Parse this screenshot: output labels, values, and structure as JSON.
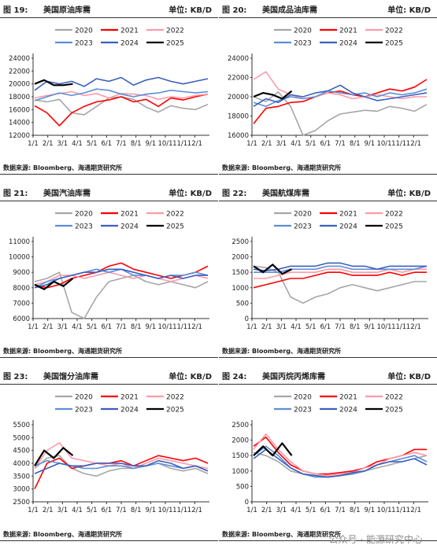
{
  "watermark": "公众号 · 能源研究中心",
  "colors": {
    "2020": "#a6a6a6",
    "2021": "#ff0000",
    "2022": "#ff9aa8",
    "2023": "#5b8fd6",
    "2024": "#3b5fc0",
    "2025": "#000000"
  },
  "panels": [
    {
      "figure": "图 19:",
      "title": "美国原油库需",
      "unit": "单位: KB/D",
      "source": "数据来源: Bloomberg、海通期货研究所",
      "chart_data": {
        "type": "line",
        "ylim": [
          12000,
          24000
        ],
        "yticks": [
          12000,
          14000,
          16000,
          18000,
          20000,
          22000,
          24000
        ],
        "xticks": [
          "1/1",
          "2/1",
          "3/1",
          "4/1",
          "5/1",
          "6/1",
          "7/1",
          "8/1",
          "9/1",
          "10/1",
          "11/1",
          "12/1"
        ],
        "series": [
          {
            "name": "2020",
            "values": [
              17500,
              17200,
              17600,
              15500,
              15200,
              16500,
              17800,
              18000,
              17600,
              16400,
              15600,
              16600,
              16200,
              16000,
              16800
            ]
          },
          {
            "name": "2021",
            "values": [
              16600,
              15500,
              13500,
              15500,
              16500,
              17200,
              17500,
              18000,
              17200,
              17600,
              16500,
              17800,
              17500,
              18000,
              18400
            ]
          },
          {
            "name": "2022",
            "values": [
              17800,
              18200,
              18500,
              18800,
              18200,
              18500,
              17800,
              18500,
              18400,
              18200,
              17600,
              18000,
              17800,
              18200,
              18400
            ]
          },
          {
            "name": "2023",
            "values": [
              17400,
              18000,
              18600,
              18200,
              18600,
              19200,
              19000,
              18400,
              18000,
              18400,
              18600,
              19000,
              18800,
              18600,
              18800
            ]
          },
          {
            "name": "2024",
            "values": [
              19000,
              20400,
              20000,
              20400,
              19600,
              20800,
              20400,
              21000,
              19800,
              20600,
              21000,
              20400,
              20000,
              20400,
              20800
            ]
          },
          {
            "name": "2025",
            "values": [
              20000,
              20600,
              19800,
              19800,
              20000
            ]
          }
        ]
      }
    },
    {
      "figure": "图 20:",
      "title": "美国成品油库需",
      "unit": "单位: KB/D",
      "source": "数据来源: Bloomberg、海通期货研究所",
      "chart_data": {
        "type": "line",
        "ylim": [
          16000,
          24000
        ],
        "yticks": [
          16000,
          18000,
          20000,
          22000,
          24000
        ],
        "xticks": [
          "1/1",
          "2/1",
          "3/1",
          "4/1",
          "5/1",
          "6/1",
          "7/1",
          "8/1",
          "9/1",
          "10/1",
          "11/1",
          "12/1"
        ],
        "series": [
          {
            "name": "2020",
            "values": [
              20000,
              19500,
              20500,
              19000,
              16000,
              16500,
              17500,
              18200,
              18400,
              18600,
              18500,
              19000,
              18800,
              18500,
              19200
            ]
          },
          {
            "name": "2021",
            "values": [
              17200,
              18800,
              19000,
              19400,
              19500,
              20000,
              20400,
              20600,
              20200,
              20000,
              20400,
              20800,
              20600,
              21000,
              21800
            ]
          },
          {
            "name": "2022",
            "values": [
              21800,
              22600,
              20800,
              20200,
              19800,
              20000,
              20400,
              20200,
              19800,
              20000,
              20200,
              20000,
              19800,
              20000,
              20000
            ]
          },
          {
            "name": "2023",
            "values": [
              19400,
              19000,
              19600,
              20000,
              19800,
              20000,
              20600,
              20400,
              20200,
              20400,
              20000,
              20400,
              20200,
              20400,
              20800
            ]
          },
          {
            "name": "2024",
            "values": [
              19000,
              19800,
              19400,
              20200,
              20000,
              20400,
              20600,
              21200,
              20400,
              20000,
              19600,
              19800,
              20000,
              20200,
              20400
            ]
          },
          {
            "name": "2025",
            "values": [
              20000,
              20400,
              20200,
              19800,
              20600
            ]
          }
        ]
      }
    },
    {
      "figure": "图 21:",
      "title": "美国汽油库需",
      "unit": "单位: KB/D",
      "source": "数据来源: Bloomberg、海通期货研究所",
      "chart_data": {
        "type": "line",
        "ylim": [
          6000,
          11000
        ],
        "yticks": [
          6000,
          7000,
          8000,
          9000,
          10000,
          11000
        ],
        "xticks": [
          "1/1",
          "2/1",
          "3/1",
          "4/1",
          "5/1",
          "6/1",
          "7/1",
          "8/1",
          "9/1",
          "10/1",
          "11/1",
          "12/1"
        ],
        "series": [
          {
            "name": "2020",
            "values": [
              8400,
              8600,
              9000,
              6400,
              6000,
              7400,
              8400,
              8600,
              8800,
              8400,
              8200,
              8400,
              8200,
              8000,
              8400
            ]
          },
          {
            "name": "2021",
            "values": [
              8200,
              8000,
              8200,
              8600,
              8800,
              9000,
              9400,
              9600,
              9200,
              9000,
              8800,
              8600,
              8800,
              9000,
              9400
            ]
          },
          {
            "name": "2022",
            "values": [
              8200,
              8400,
              8800,
              8800,
              8600,
              8800,
              9000,
              8800,
              8600,
              8800,
              8600,
              8400,
              8600,
              8800,
              8600
            ]
          },
          {
            "name": "2023",
            "values": [
              8000,
              8400,
              8600,
              8800,
              9000,
              9200,
              9000,
              9200,
              8800,
              8800,
              8600,
              8800,
              8800,
              9000,
              8800
            ]
          },
          {
            "name": "2024",
            "values": [
              8000,
              8200,
              8600,
              8800,
              9000,
              9000,
              9200,
              9200,
              9000,
              8800,
              8600,
              8800,
              8600,
              8800,
              8800
            ]
          },
          {
            "name": "2025",
            "values": [
              8200,
              7900,
              8400,
              8100,
              8600
            ]
          }
        ]
      }
    },
    {
      "figure": "图 22:",
      "title": "美国航煤库需",
      "unit": "单位: KB/D",
      "source": "数据来源: Bloomberg、海通期货研究所",
      "chart_data": {
        "type": "line",
        "ylim": [
          0,
          2500
        ],
        "yticks": [
          0,
          500,
          1000,
          1500,
          2000,
          2500
        ],
        "xticks": [
          "1/1",
          "2/1",
          "3/1",
          "4/1",
          "5/1",
          "6/1",
          "7/1",
          "8/1",
          "9/1",
          "10/1",
          "11/1",
          "12/1"
        ],
        "series": [
          {
            "name": "2020",
            "values": [
              1700,
              1650,
              1500,
              700,
              500,
              700,
              800,
              1000,
              1100,
              1000,
              900,
              1000,
              1100,
              1200,
              1200
            ]
          },
          {
            "name": "2021",
            "values": [
              1000,
              1100,
              1200,
              1300,
              1300,
              1400,
              1500,
              1500,
              1400,
              1400,
              1400,
              1500,
              1400,
              1500,
              1500
            ]
          },
          {
            "name": "2022",
            "values": [
              1300,
              1300,
              1400,
              1500,
              1500,
              1500,
              1600,
              1600,
              1500,
              1500,
              1500,
              1600,
              1500,
              1600,
              1600
            ]
          },
          {
            "name": "2023",
            "values": [
              1500,
              1500,
              1500,
              1600,
              1600,
              1600,
              1700,
              1700,
              1600,
              1600,
              1600,
              1600,
              1600,
              1600,
              1700
            ]
          },
          {
            "name": "2024",
            "values": [
              1600,
              1550,
              1600,
              1700,
              1700,
              1700,
              1800,
              1800,
              1700,
              1700,
              1600,
              1700,
              1700,
              1700,
              1700
            ]
          },
          {
            "name": "2025",
            "values": [
              1700,
              1500,
              1750,
              1450,
              1600
            ]
          }
        ]
      }
    },
    {
      "figure": "图 23:",
      "title": "美国馏分油库需",
      "unit": "单位: KB/D",
      "source": "数据来源: Bloomberg、海通期货研究所",
      "chart_data": {
        "type": "line",
        "ylim": [
          2500,
          5500
        ],
        "yticks": [
          2500,
          3000,
          3500,
          4000,
          4500,
          5000,
          5500
        ],
        "xticks": [
          "1/1",
          "2/1",
          "3/1",
          "4/1",
          "5/1",
          "6/1",
          "7/1",
          "8/1",
          "9/1",
          "10/1",
          "11/1",
          "12/1"
        ],
        "series": [
          {
            "name": "2020",
            "values": [
              3800,
              4200,
              4300,
              3800,
              3600,
              3500,
              3700,
              3800,
              3800,
              3900,
              4000,
              3800,
              3700,
              3800,
              3600
            ]
          },
          {
            "name": "2021",
            "values": [
              3000,
              4000,
              4200,
              3800,
              3900,
              4000,
              4000,
              4100,
              3900,
              4100,
              4300,
              4200,
              4100,
              4200,
              4000
            ]
          },
          {
            "name": "2022",
            "values": [
              3800,
              4500,
              4800,
              4200,
              4100,
              4000,
              3900,
              4000,
              3800,
              4000,
              4200,
              4100,
              4000,
              3900,
              3800
            ]
          },
          {
            "name": "2023",
            "values": [
              3900,
              4100,
              4000,
              3900,
              3800,
              3800,
              3900,
              3900,
              3800,
              3900,
              4000,
              3900,
              3800,
              3900,
              3700
            ]
          },
          {
            "name": "2024",
            "values": [
              3600,
              3800,
              4000,
              3900,
              3900,
              4000,
              4000,
              4000,
              3900,
              3900,
              4100,
              4000,
              3800,
              3900,
              3700
            ]
          },
          {
            "name": "2025",
            "values": [
              3900,
              4500,
              4200,
              4600,
              4300
            ]
          }
        ]
      }
    },
    {
      "figure": "图 24:",
      "title": "美国丙烷丙烯库需",
      "unit": "单位: KB/D",
      "source": "数据来源: Bloomberg、海通期货研究所",
      "chart_data": {
        "type": "line",
        "ylim": [
          0,
          2500
        ],
        "yticks": [
          0,
          500,
          1000,
          1500,
          2000,
          2500
        ],
        "xticks": [
          "1/1",
          "2/1",
          "3/1",
          "4/1",
          "5/1",
          "6/1",
          "7/1",
          "8/1",
          "9/1",
          "10/1",
          "11/1",
          "12/1"
        ],
        "series": [
          {
            "name": "2020",
            "values": [
              1600,
              1500,
              1300,
              1000,
              900,
              850,
              800,
              850,
              900,
              1000,
              1100,
              1200,
              1300,
              1400,
              1500
            ]
          },
          {
            "name": "2021",
            "values": [
              1800,
              2100,
              1600,
              1200,
              1000,
              900,
              900,
              950,
              1000,
              1100,
              1300,
              1400,
              1500,
              1700,
              1700
            ]
          },
          {
            "name": "2022",
            "values": [
              1700,
              2200,
              1700,
              1300,
              1000,
              900,
              850,
              900,
              950,
              1100,
              1200,
              1400,
              1500,
              1600,
              1500
            ]
          },
          {
            "name": "2023",
            "values": [
              1500,
              1800,
              1500,
              1100,
              900,
              800,
              800,
              850,
              900,
              1000,
              1200,
              1300,
              1400,
              1500,
              1300
            ]
          },
          {
            "name": "2024",
            "values": [
              1400,
              1700,
              1400,
              1100,
              900,
              850,
              800,
              850,
              950,
              1000,
              1200,
              1300,
              1300,
              1400,
              1200
            ]
          },
          {
            "name": "2025",
            "values": [
              1500,
              1800,
              1500,
              1900,
              1500
            ]
          }
        ]
      }
    }
  ]
}
